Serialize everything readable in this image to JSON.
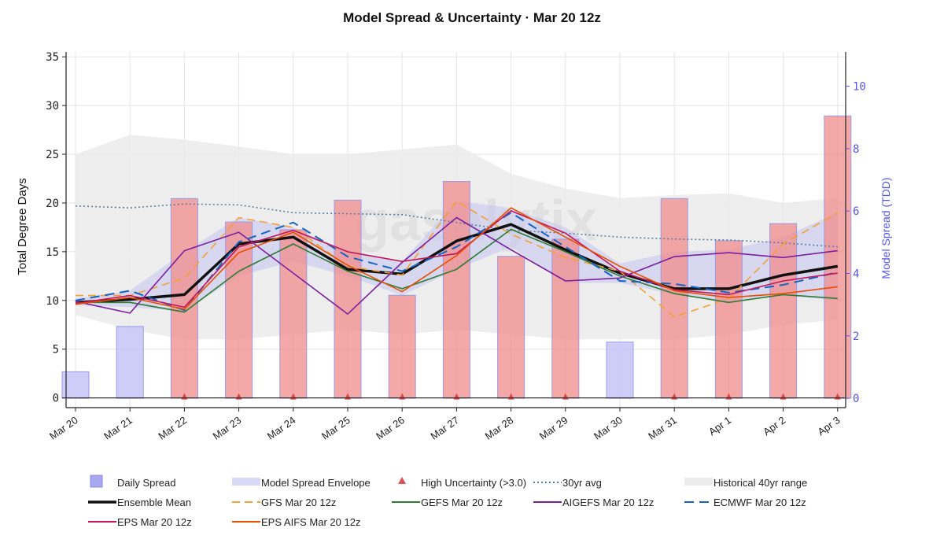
{
  "chart_data": {
    "type": "line",
    "title": "Model Spread & Uncertainty · Mar 20 12z",
    "ylabel": "Total Degree Days",
    "y2label": "Model Spread (TDD)",
    "watermark": "gasalytix",
    "ylim": [
      -1,
      35.5
    ],
    "y2lim": [
      -0.3,
      11.1
    ],
    "yticks": [
      "0",
      "5",
      "10",
      "15",
      "20",
      "25",
      "30",
      "35"
    ],
    "y2ticks": [
      "0",
      "2",
      "4",
      "6",
      "8",
      "10"
    ],
    "categories": [
      "Mar 20",
      "Mar 21",
      "Mar 22",
      "Mar 23",
      "Mar 24",
      "Mar 25",
      "Mar 26",
      "Mar 27",
      "Mar 28",
      "Mar 29",
      "Mar 30",
      "Mar 31",
      "Apr 1",
      "Apr 2",
      "Apr 3"
    ],
    "daily_spread": [
      0.85,
      2.3,
      6.4,
      5.65,
      5.4,
      6.35,
      3.3,
      6.95,
      4.55,
      5.1,
      1.8,
      6.4,
      5.05,
      5.6,
      9.05
    ],
    "high_uncertainty_threshold": 3.0,
    "model_spread_envelope": {
      "low": [
        9.5,
        9.3,
        8.9,
        12.5,
        14.0,
        12.5,
        10.5,
        13.2,
        15.5,
        11.8,
        11.8,
        10.6,
        9.8,
        10.5,
        10.0
      ],
      "high": [
        10.2,
        11.0,
        15.0,
        18.5,
        17.5,
        15.0,
        14.0,
        20.2,
        19.5,
        17.5,
        13.8,
        15.0,
        15.2,
        16.5,
        19.0
      ]
    },
    "historical_range": {
      "low": [
        8.5,
        7.0,
        6.0,
        6.0,
        6.5,
        7.0,
        6.5,
        7.0,
        6.5,
        6.0,
        6.0,
        6.0,
        6.5,
        7.5,
        8.0
      ],
      "high": [
        25.0,
        27.0,
        26.5,
        25.8,
        25.0,
        25.0,
        25.5,
        26.0,
        23.0,
        21.5,
        20.5,
        20.8,
        21.0,
        20.0,
        20.5
      ]
    },
    "series": [
      {
        "name": "30yr avg",
        "color": "#5a7fa0",
        "dash": "2,3",
        "width": 1.6,
        "values": [
          19.7,
          19.5,
          19.9,
          19.8,
          19.0,
          18.9,
          18.8,
          18.0,
          17.2,
          16.9,
          16.5,
          16.3,
          16.2,
          15.9,
          15.5
        ]
      },
      {
        "name": "Ensemble Mean",
        "color": "#111111",
        "dash": "",
        "width": 3.5,
        "values": [
          9.8,
          10.1,
          10.6,
          15.8,
          16.5,
          13.2,
          12.7,
          16.1,
          17.8,
          15.2,
          12.8,
          11.2,
          11.2,
          12.6,
          13.5
        ]
      },
      {
        "name": "GFS Mar 20 12z",
        "color": "#f5a033",
        "dash": "10,6",
        "width": 1.6,
        "values": [
          10.5,
          10.5,
          12.3,
          18.5,
          17.5,
          13.5,
          12.6,
          20.2,
          16.8,
          14.4,
          13.0,
          8.3,
          10.2,
          15.8,
          19.0
        ]
      },
      {
        "name": "GEFS Mar 20 12z",
        "color": "#2e7d32",
        "dash": "",
        "width": 1.6,
        "values": [
          9.8,
          9.8,
          8.8,
          13.0,
          15.8,
          13.0,
          11.2,
          13.2,
          17.3,
          15.0,
          12.5,
          10.7,
          9.8,
          10.6,
          10.2
        ]
      },
      {
        "name": "AIGEFS Mar 20 12z",
        "color": "#7b1fa2",
        "dash": "",
        "width": 1.6,
        "values": [
          9.9,
          8.7,
          15.1,
          17.0,
          12.8,
          8.6,
          13.9,
          18.5,
          15.2,
          12.0,
          12.3,
          14.5,
          14.9,
          14.4,
          15.1
        ]
      },
      {
        "name": "ECMWF Mar 20 12z",
        "color": "#1565c0",
        "dash": "12,7",
        "width": 2.0,
        "values": [
          10.0,
          11.0,
          9.0,
          16.0,
          18.0,
          14.5,
          13.0,
          15.5,
          19.0,
          15.5,
          12.0,
          11.7,
          10.8,
          11.6,
          12.9
        ]
      },
      {
        "name": "EPS Mar 20 12z",
        "color": "#c2185b",
        "dash": "",
        "width": 1.6,
        "values": [
          9.7,
          10.5,
          9.3,
          15.5,
          17.2,
          15.0,
          14.0,
          14.8,
          19.2,
          16.9,
          13.0,
          11.1,
          10.6,
          12.0,
          12.8
        ]
      },
      {
        "name": "EPS AIFS Mar 20 12z",
        "color": "#e65100",
        "dash": "",
        "width": 1.6,
        "values": [
          9.6,
          10.3,
          9.1,
          14.9,
          17.0,
          13.6,
          10.9,
          14.6,
          19.5,
          16.5,
          13.5,
          11.0,
          10.3,
          10.7,
          11.4
        ]
      }
    ],
    "legend": {
      "position": "bottom",
      "items": [
        {
          "label": "Daily Spread",
          "kind": "bar",
          "color": "#a8a8f0"
        },
        {
          "label": "Model Spread Envelope",
          "kind": "band",
          "color": "#d8d8f7"
        },
        {
          "label": "High Uncertainty (>3.0)",
          "kind": "triangle",
          "color": "#e05050"
        },
        {
          "label": "30yr avg",
          "kind": "line",
          "color": "#5a7fa0",
          "dash": "2,3"
        },
        {
          "label": "Historical 40yr range",
          "kind": "band",
          "color": "#ececec"
        },
        {
          "label": "Ensemble Mean",
          "kind": "line",
          "color": "#111111",
          "dash": ""
        },
        {
          "label": "GFS Mar 20 12z",
          "kind": "line",
          "color": "#f5a033",
          "dash": "10,6"
        },
        {
          "label": "GEFS Mar 20 12z",
          "kind": "line",
          "color": "#2e7d32",
          "dash": ""
        },
        {
          "label": "AIGEFS Mar 20 12z",
          "kind": "line",
          "color": "#7b1fa2",
          "dash": ""
        },
        {
          "label": "ECMWF Mar 20 12z",
          "kind": "line",
          "color": "#1565c0",
          "dash": "12,7"
        },
        {
          "label": "EPS Mar 20 12z",
          "kind": "line",
          "color": "#c2185b",
          "dash": ""
        },
        {
          "label": "EPS AIFS Mar 20 12z",
          "kind": "line",
          "color": "#e65100",
          "dash": ""
        }
      ]
    }
  }
}
